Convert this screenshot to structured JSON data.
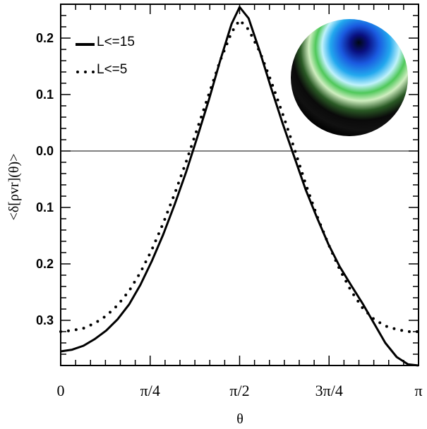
{
  "chart_data": {
    "type": "line",
    "xlabel": "θ",
    "ylabel": "<δ[ρvr](θ)>",
    "x_tick_labels": [
      "0",
      "π/4",
      "π/2",
      "3π/4",
      "π"
    ],
    "x_tick_values": [
      0,
      0.7854,
      1.5708,
      2.3562,
      3.1416
    ],
    "y_tick_labels": [
      "0.2",
      "0.1",
      "0.0",
      "0.1",
      "0.2",
      "0.3"
    ],
    "y_tick_values": [
      0.2,
      0.1,
      0.0,
      -0.1,
      -0.2,
      -0.3
    ],
    "xlim": [
      0,
      3.1416
    ],
    "ylim": [
      -0.38,
      0.26
    ],
    "zero_line": true,
    "legend": {
      "position": "top-left"
    },
    "inset": "sphere-map",
    "series": [
      {
        "name": "L<=15",
        "style": "solid",
        "x": [
          0,
          0.1,
          0.2,
          0.3,
          0.4,
          0.5,
          0.6,
          0.7,
          0.8,
          0.9,
          1.0,
          1.1,
          1.2,
          1.3,
          1.4,
          1.5,
          1.5708,
          1.65,
          1.75,
          1.85,
          1.95,
          2.05,
          2.15,
          2.25,
          2.35,
          2.45,
          2.55,
          2.65,
          2.75,
          2.85,
          2.95,
          3.05,
          3.1416
        ],
        "y": [
          -0.355,
          -0.352,
          -0.345,
          -0.333,
          -0.318,
          -0.298,
          -0.272,
          -0.237,
          -0.195,
          -0.148,
          -0.095,
          -0.038,
          0.025,
          0.09,
          0.16,
          0.225,
          0.255,
          0.235,
          0.175,
          0.11,
          0.048,
          -0.01,
          -0.068,
          -0.118,
          -0.165,
          -0.205,
          -0.238,
          -0.27,
          -0.305,
          -0.34,
          -0.365,
          -0.378,
          -0.38
        ]
      },
      {
        "name": "L<=5",
        "style": "dotted",
        "x": [
          0,
          0.1,
          0.2,
          0.3,
          0.4,
          0.5,
          0.6,
          0.7,
          0.8,
          0.9,
          1.0,
          1.1,
          1.2,
          1.3,
          1.4,
          1.5,
          1.5708,
          1.65,
          1.75,
          1.85,
          1.95,
          2.05,
          2.15,
          2.25,
          2.35,
          2.45,
          2.55,
          2.65,
          2.75,
          2.85,
          2.95,
          3.05,
          3.1416
        ],
        "y": [
          -0.32,
          -0.318,
          -0.314,
          -0.305,
          -0.292,
          -0.273,
          -0.248,
          -0.215,
          -0.175,
          -0.128,
          -0.076,
          -0.02,
          0.04,
          0.1,
          0.16,
          0.21,
          0.232,
          0.215,
          0.175,
          0.122,
          0.065,
          0.005,
          -0.058,
          -0.115,
          -0.165,
          -0.21,
          -0.248,
          -0.278,
          -0.298,
          -0.31,
          -0.316,
          -0.32,
          -0.32
        ]
      }
    ]
  }
}
